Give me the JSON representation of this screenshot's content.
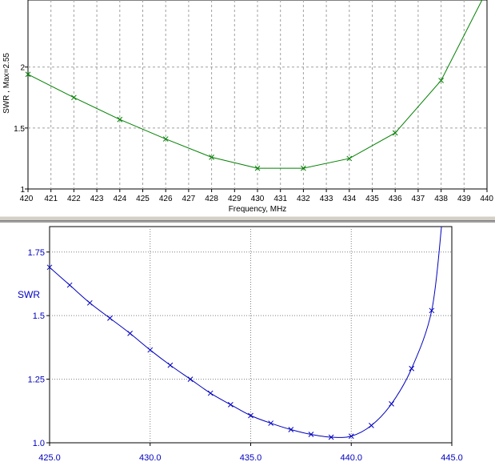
{
  "charts": [
    {
      "type": "line",
      "xlabel": "Frequency, MHz",
      "ylabel": "SWR , Max=2.55",
      "xlim": [
        420,
        440
      ],
      "ylim": [
        1,
        2.55
      ],
      "x_ticks": [
        420,
        421,
        422,
        423,
        424,
        425,
        426,
        427,
        428,
        429,
        430,
        431,
        432,
        433,
        434,
        435,
        436,
        437,
        438,
        439,
        440
      ],
      "y_ticks": [
        {
          "v": 1,
          "label": "1"
        },
        {
          "v": 1.5,
          "label": "1.5"
        },
        {
          "v": 2,
          "label": "2"
        }
      ],
      "series": [
        {
          "color": "#008000",
          "marker": "x",
          "x": [
            420,
            422,
            424,
            426,
            428,
            430,
            432,
            434,
            436,
            438,
            440
          ],
          "y": [
            1.94,
            1.75,
            1.57,
            1.41,
            1.26,
            1.17,
            1.17,
            1.25,
            1.46,
            1.89,
            2.63
          ]
        }
      ]
    },
    {
      "type": "line",
      "xlabel": "",
      "ylabel": "SWR",
      "xlim": [
        425,
        445
      ],
      "ylim": [
        1.0,
        1.85
      ],
      "x_ticks": [
        {
          "v": 425,
          "label": "425.0"
        },
        {
          "v": 430,
          "label": "430.0"
        },
        {
          "v": 435,
          "label": "435.0"
        },
        {
          "v": 440,
          "label": "440.0"
        },
        {
          "v": 445,
          "label": "445.0"
        }
      ],
      "y_ticks": [
        {
          "v": 1.0,
          "label": "1.0"
        },
        {
          "v": 1.25,
          "label": "1.25"
        },
        {
          "v": 1.5,
          "label": "1.5"
        },
        {
          "v": 1.75,
          "label": "1.75"
        }
      ],
      "series": [
        {
          "color": "#0000c0",
          "marker": "x",
          "x": [
            425,
            426,
            427,
            428,
            429,
            430,
            431,
            432,
            433,
            434,
            435,
            436,
            437,
            438,
            439,
            440,
            441,
            442,
            443,
            444,
            444.5
          ],
          "y": [
            1.69,
            1.62,
            1.55,
            1.49,
            1.43,
            1.365,
            1.305,
            1.25,
            1.195,
            1.15,
            1.107,
            1.077,
            1.052,
            1.033,
            1.022,
            1.026,
            1.068,
            1.153,
            1.292,
            1.52,
            1.86
          ],
          "marker_count": 20
        }
      ]
    }
  ]
}
